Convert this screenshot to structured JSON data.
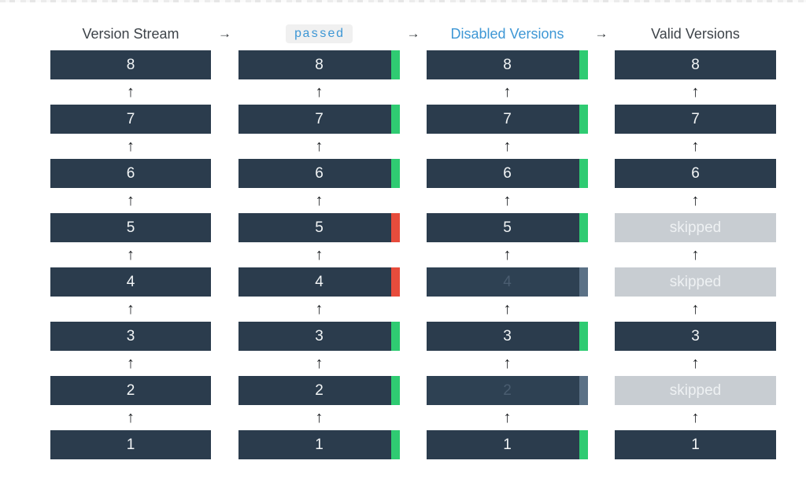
{
  "title_row": {
    "arrow": "→",
    "headers": [
      {
        "label": "Version Stream",
        "style": "plain"
      },
      {
        "label": "passed",
        "style": "code"
      },
      {
        "label": "Disabled Versions",
        "style": "link"
      },
      {
        "label": "Valid Versions",
        "style": "plain"
      }
    ]
  },
  "up_arrow": "↑",
  "colors": {
    "bar_dark": "#2b3c4d",
    "bar_disabled": "#2e4153",
    "bar_skipped": "#c8cdd2",
    "strip_green": "#2fcb72",
    "strip_red": "#e74c3c",
    "strip_muted": "#5b7186",
    "link_blue": "#3e97d5",
    "header_text": "#3d4349",
    "code_chip_bg": "#f0f0f0"
  },
  "columns": [
    {
      "name": "version-stream",
      "bars": [
        {
          "id": "8",
          "label": "8",
          "variant": "dark",
          "strip": "none"
        },
        {
          "id": "7",
          "label": "7",
          "variant": "dark",
          "strip": "none"
        },
        {
          "id": "6",
          "label": "6",
          "variant": "dark",
          "strip": "none"
        },
        {
          "id": "5",
          "label": "5",
          "variant": "dark",
          "strip": "none"
        },
        {
          "id": "4",
          "label": "4",
          "variant": "dark",
          "strip": "none"
        },
        {
          "id": "3",
          "label": "3",
          "variant": "dark",
          "strip": "none"
        },
        {
          "id": "2",
          "label": "2",
          "variant": "dark",
          "strip": "none"
        },
        {
          "id": "1",
          "label": "1",
          "variant": "dark",
          "strip": "none"
        }
      ]
    },
    {
      "name": "passed",
      "bars": [
        {
          "id": "8",
          "label": "8",
          "variant": "dark",
          "strip": "green"
        },
        {
          "id": "7",
          "label": "7",
          "variant": "dark",
          "strip": "green"
        },
        {
          "id": "6",
          "label": "6",
          "variant": "dark",
          "strip": "green"
        },
        {
          "id": "5",
          "label": "5",
          "variant": "dark",
          "strip": "red"
        },
        {
          "id": "4",
          "label": "4",
          "variant": "dark",
          "strip": "red"
        },
        {
          "id": "3",
          "label": "3",
          "variant": "dark",
          "strip": "green"
        },
        {
          "id": "2",
          "label": "2",
          "variant": "dark",
          "strip": "green"
        },
        {
          "id": "1",
          "label": "1",
          "variant": "dark",
          "strip": "green"
        }
      ]
    },
    {
      "name": "disabled-versions",
      "bars": [
        {
          "id": "8",
          "label": "8",
          "variant": "dark",
          "strip": "green"
        },
        {
          "id": "7",
          "label": "7",
          "variant": "dark",
          "strip": "green"
        },
        {
          "id": "6",
          "label": "6",
          "variant": "dark",
          "strip": "green"
        },
        {
          "id": "5",
          "label": "5",
          "variant": "dark",
          "strip": "green"
        },
        {
          "id": "4",
          "label": "4",
          "variant": "disabled",
          "strip": "muted"
        },
        {
          "id": "3",
          "label": "3",
          "variant": "dark",
          "strip": "green"
        },
        {
          "id": "2",
          "label": "2",
          "variant": "disabled",
          "strip": "muted"
        },
        {
          "id": "1",
          "label": "1",
          "variant": "dark",
          "strip": "green"
        }
      ]
    },
    {
      "name": "valid-versions",
      "bars": [
        {
          "id": "8",
          "label": "8",
          "variant": "dark",
          "strip": "none"
        },
        {
          "id": "7",
          "label": "7",
          "variant": "dark",
          "strip": "none"
        },
        {
          "id": "6",
          "label": "6",
          "variant": "dark",
          "strip": "none"
        },
        {
          "id": "5",
          "label": "skipped",
          "variant": "skipped",
          "strip": "none"
        },
        {
          "id": "4",
          "label": "skipped",
          "variant": "skipped",
          "strip": "none"
        },
        {
          "id": "3",
          "label": "3",
          "variant": "dark",
          "strip": "none"
        },
        {
          "id": "2",
          "label": "skipped",
          "variant": "skipped",
          "strip": "none"
        },
        {
          "id": "1",
          "label": "1",
          "variant": "dark",
          "strip": "none"
        }
      ]
    }
  ]
}
